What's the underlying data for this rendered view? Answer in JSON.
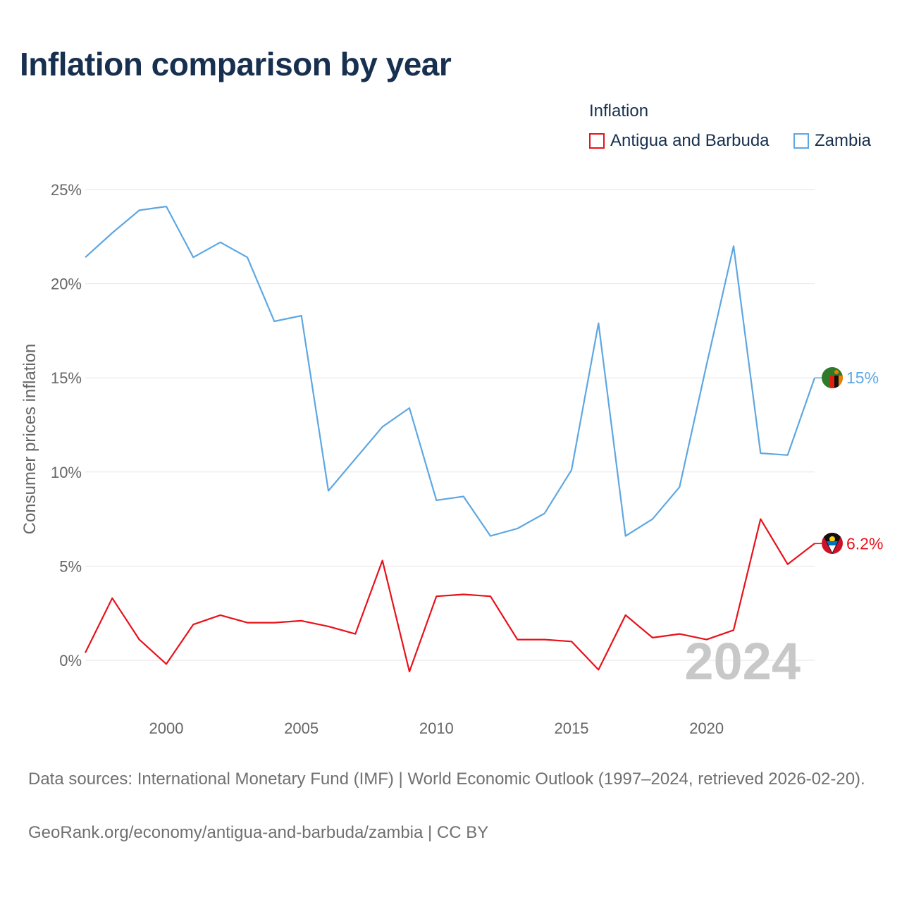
{
  "title": "Inflation comparison by year",
  "legend": {
    "title": "Inflation",
    "items": [
      {
        "label": "Antigua and Barbuda",
        "color": "#e8111a"
      },
      {
        "label": "Zambia",
        "color": "#5ea7e2"
      }
    ]
  },
  "chart_data": {
    "type": "line",
    "title": "Inflation comparison by year",
    "xlabel": "",
    "ylabel": "Consumer prices inflation",
    "xlim": [
      1997,
      2024
    ],
    "ylim": [
      0,
      25
    ],
    "x_ticks": [
      2000,
      2005,
      2010,
      2015,
      2020
    ],
    "y_ticks": [
      0,
      5,
      10,
      15,
      20,
      25
    ],
    "y_tick_labels": [
      "0%",
      "5%",
      "10%",
      "15%",
      "20%",
      "25%"
    ],
    "grid": true,
    "year_watermark": "2024",
    "x": [
      1997,
      1998,
      1999,
      2000,
      2001,
      2002,
      2003,
      2004,
      2005,
      2006,
      2007,
      2008,
      2009,
      2010,
      2011,
      2012,
      2013,
      2014,
      2015,
      2016,
      2017,
      2018,
      2019,
      2020,
      2021,
      2022,
      2023,
      2024
    ],
    "series": [
      {
        "name": "Zambia",
        "color": "#5ea7e2",
        "end_label": "15%",
        "flag": "zambia-flag",
        "values": [
          21.4,
          22.7,
          23.9,
          24.1,
          21.4,
          22.2,
          21.4,
          18.0,
          18.3,
          9.0,
          10.7,
          12.4,
          13.4,
          8.5,
          8.7,
          6.6,
          7.0,
          7.8,
          10.1,
          17.9,
          6.6,
          7.5,
          9.2,
          15.7,
          22.0,
          11.0,
          10.9,
          15.0
        ]
      },
      {
        "name": "Antigua and Barbuda",
        "color": "#e8111a",
        "end_label": "6.2%",
        "flag": "antigua-flag",
        "values": [
          0.4,
          3.3,
          1.1,
          -0.2,
          1.9,
          2.4,
          2.0,
          2.0,
          2.1,
          1.8,
          1.4,
          5.3,
          -0.6,
          3.4,
          3.5,
          3.4,
          1.1,
          1.1,
          1.0,
          -0.5,
          2.4,
          1.2,
          1.4,
          1.1,
          1.6,
          7.5,
          5.1,
          6.2
        ]
      }
    ]
  },
  "footer": {
    "sources": "Data sources: International Monetary Fund (IMF) | World Economic Outlook (1997–2024, retrieved 2026-02-20).",
    "site": "GeoRank.org/economy/antigua-and-barbuda/zambia | CC BY"
  }
}
